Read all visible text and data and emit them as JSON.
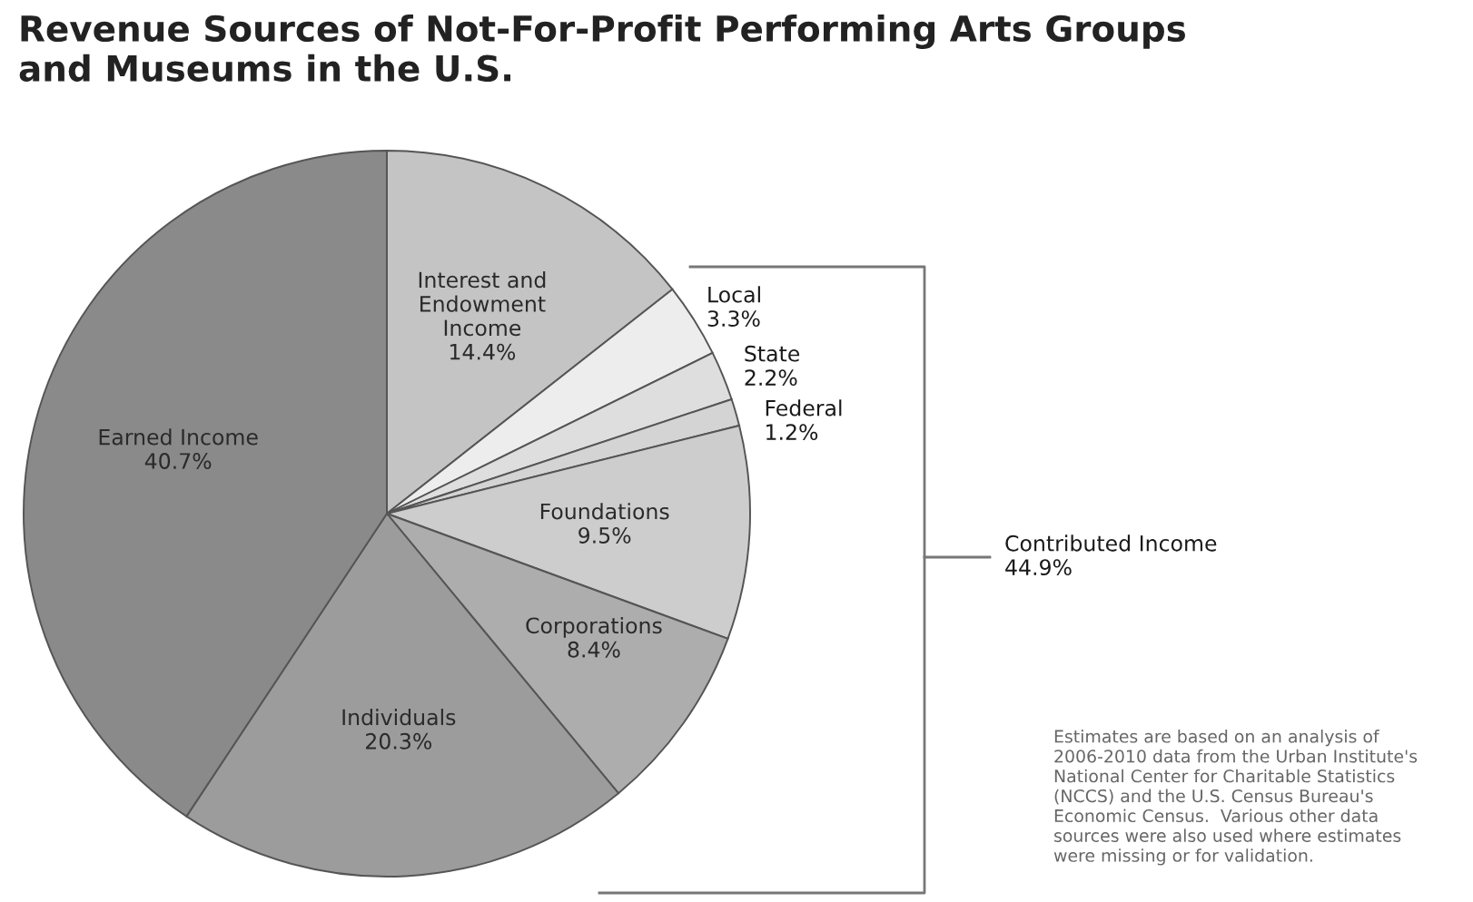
{
  "chart_data": {
    "type": "pie",
    "title": "Revenue Sources of Not-For-Profit Performing Arts Groups\nand Museums in the U.S.",
    "categories": [
      "Interest and\nEndowment\nIncome",
      "Local",
      "State",
      "Federal",
      "Foundations",
      "Corporations",
      "Individuals",
      "Earned Income"
    ],
    "values": [
      14.4,
      3.3,
      2.2,
      1.2,
      9.5,
      8.4,
      20.3,
      40.7
    ],
    "value_labels": [
      "14.4%",
      "3.3%",
      "2.2%",
      "1.2%",
      "9.5%",
      "8.4%",
      "20.3%",
      "40.7%"
    ],
    "colors": [
      "#c4c4c4",
      "#ededed",
      "#dedede",
      "#d4d4d4",
      "#cdcdcd",
      "#adadad",
      "#9c9c9c",
      "#8a8a8a"
    ],
    "annotations": [
      "Contributed Income\n44.9%",
      "Estimates are based on an analysis of\n2006-2010 data from the Urban Institute's\nNational Center for Charitable Statistics\n(NCCS) and the U.S. Census Bureau's\nEconomic Census.  Various other data\nsources were also used where estimates\nwere missing or for validation."
    ]
  }
}
